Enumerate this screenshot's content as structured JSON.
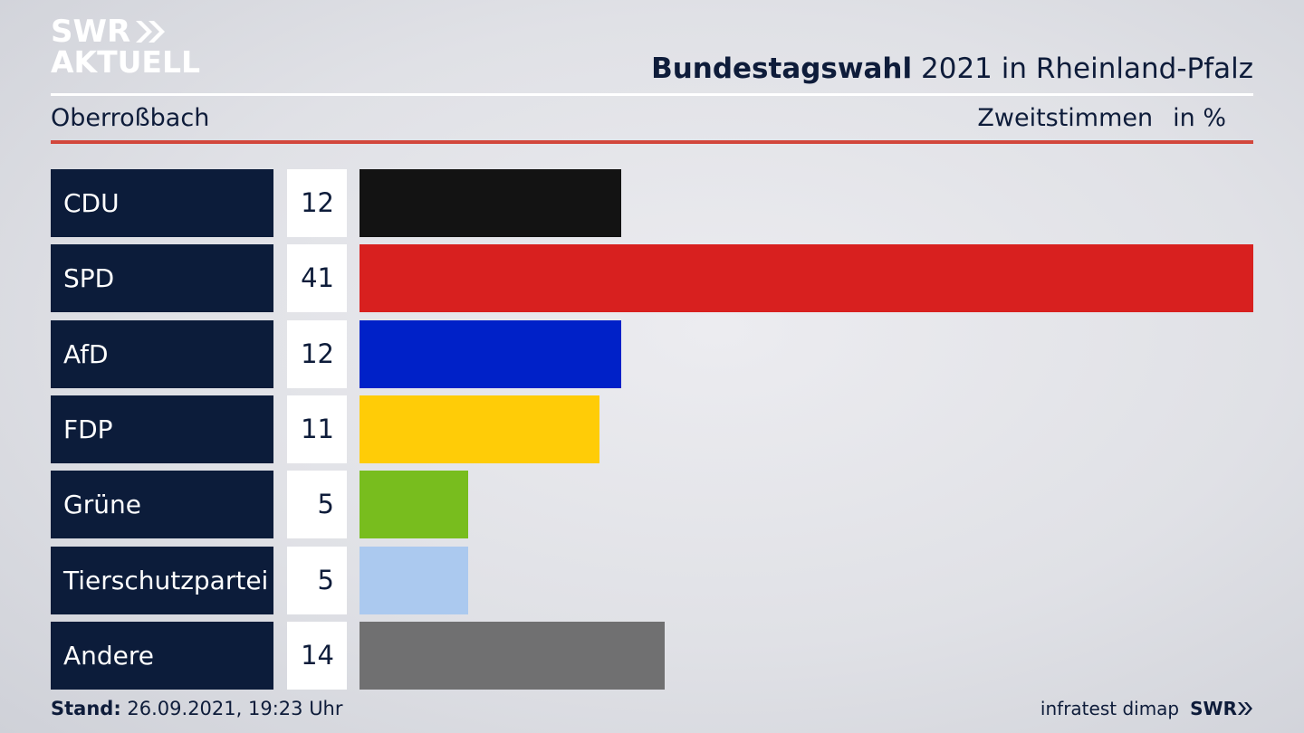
{
  "logo": {
    "line1": "SWR",
    "line2": "AKTUELL"
  },
  "headline": {
    "bold": "Bundestagswahl",
    "rest": "2021 in Rheinland-Pfalz"
  },
  "subtitle": {
    "location": "Oberroßbach",
    "measure": "Zweitstimmen",
    "unit": "in %"
  },
  "footer": {
    "stand_label": "Stand:",
    "stand_value": "26.09.2021, 19:23 Uhr",
    "source": "infratest dimap",
    "brand": "SWR"
  },
  "colors": {
    "accent_red": "#d2473c",
    "navy": "#0c1c3a"
  },
  "chart_data": {
    "type": "bar",
    "orientation": "horizontal",
    "xlim": [
      0,
      41
    ],
    "categories": [
      "CDU",
      "SPD",
      "AfD",
      "FDP",
      "Grüne",
      "Tierschutzpartei",
      "Andere"
    ],
    "values": [
      12,
      41,
      12,
      11,
      5,
      5,
      14
    ],
    "labels": [
      "12",
      "41",
      "12",
      "11",
      "5",
      "5",
      "14"
    ],
    "colors": [
      "#131313",
      "#d8201f",
      "#0021c8",
      "#ffcc07",
      "#78bd1e",
      "#abc9ef",
      "#707071"
    ]
  }
}
